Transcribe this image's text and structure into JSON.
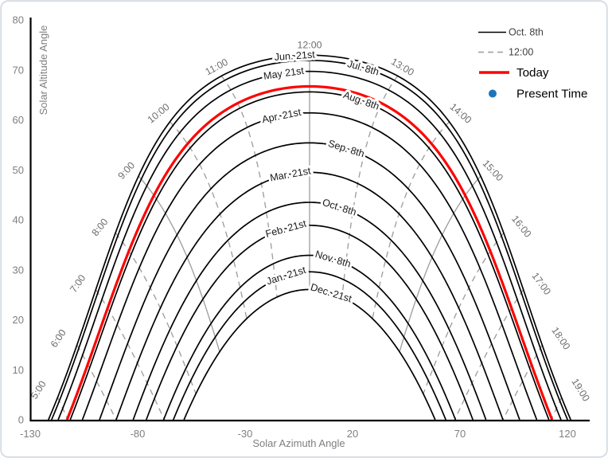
{
  "chart_data": {
    "type": "line",
    "description": "Sun path chart: solar altitude vs solar azimuth for multiple dates with hour lines",
    "latitude_deg": 40.5,
    "x_axis": {
      "label": "Solar Azimuth Angle",
      "min": -130,
      "max": 120,
      "ticks": [
        -130,
        -80,
        -30,
        20,
        70,
        120
      ]
    },
    "y_axis": {
      "label": "Solar Altitude Angle",
      "min": 0,
      "max": 80,
      "ticks": [
        0,
        10,
        20,
        30,
        40,
        50,
        60,
        70,
        80
      ]
    },
    "date_series": [
      {
        "label": "Jun. 21st",
        "declination_deg": 23.44
      },
      {
        "label": "Jul. 8th",
        "declination_deg": 22.4
      },
      {
        "label": "May 21st",
        "declination_deg": 20.2
      },
      {
        "label": "Aug. 8th",
        "declination_deg": 16.1
      },
      {
        "label": "Apr. 21st",
        "declination_deg": 11.9
      },
      {
        "label": "Sep. 8th",
        "declination_deg": 5.9
      },
      {
        "label": "Mar. 21st",
        "declination_deg": 0.0
      },
      {
        "label": "Oct. 8th",
        "declination_deg": -6.0
      },
      {
        "label": "Feb. 21st",
        "declination_deg": -10.6
      },
      {
        "label": "Nov. 8th",
        "declination_deg": -16.6
      },
      {
        "label": "Jan. 21st",
        "declination_deg": -19.9
      },
      {
        "label": "Dec. 21st",
        "declination_deg": -23.44
      }
    ],
    "today_series": {
      "label": "Today",
      "declination_deg": 17.2
    },
    "hour_lines": {
      "hours": [
        5,
        6,
        7,
        8,
        9,
        10,
        11,
        12,
        13,
        14,
        15,
        16,
        17,
        18,
        19
      ],
      "labels": [
        "5:00",
        "6:00",
        "7:00",
        "8:00",
        "9:00",
        "10:00",
        "11:00",
        "12:00",
        "13:00",
        "14:00",
        "15:00",
        "16:00",
        "17:00",
        "18:00",
        "19:00"
      ],
      "solid_hours": [
        9,
        12,
        15
      ]
    },
    "legend": {
      "items": [
        {
          "label": "Oct. 8th",
          "swatch": "line",
          "color": "#000000",
          "text_size": "small"
        },
        {
          "label": "12:00",
          "swatch": "dashed-line",
          "color": "#A6A6A6",
          "text_size": "small"
        },
        {
          "label": "Today",
          "swatch": "thick-line",
          "color": "#FF0000",
          "text_size": "large"
        },
        {
          "label": "Present Time",
          "swatch": "dot",
          "color": "#1B75BC",
          "text_size": "large"
        }
      ]
    },
    "colors": {
      "date_curve": "#000000",
      "today_curve": "#FF0000",
      "hour_line": "#9E9E9E",
      "axis_line": "#000000",
      "tick_text": "#7F7F7F",
      "axis_title_text": "#7F7F7F",
      "date_label_text": "#1A1A1A",
      "hour_label_text": "#6E6E6E",
      "present_time_dot": "#1B75BC",
      "frame_border": "#D5DBE3"
    }
  }
}
